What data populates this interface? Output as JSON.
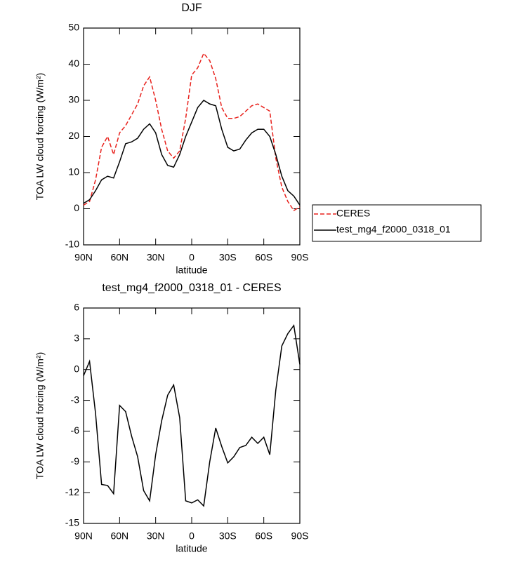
{
  "chart_data": [
    {
      "type": "line",
      "title": "DJF",
      "xlabel": "latitude",
      "ylabel": "TOA LW cloud forcing (W/m²)",
      "x": [
        90,
        85,
        80,
        75,
        70,
        65,
        60,
        55,
        50,
        45,
        40,
        35,
        30,
        25,
        20,
        15,
        10,
        5,
        0,
        -5,
        -10,
        -15,
        -20,
        -25,
        -30,
        -35,
        -40,
        -45,
        -50,
        -55,
        -60,
        -65,
        -70,
        -75,
        -80,
        -85,
        -90
      ],
      "series": [
        {
          "name": "CERES",
          "color": "#e8211c",
          "linestyle": "dashed",
          "values": [
            1,
            2,
            8,
            17,
            20,
            15,
            21,
            23,
            26,
            29,
            34,
            36.5,
            30,
            22,
            16,
            14,
            16,
            25,
            37,
            39,
            43,
            41,
            36,
            28,
            25,
            25,
            25.5,
            27,
            28.5,
            29,
            28,
            27,
            14,
            6,
            2,
            -0.5,
            0.5
          ]
        },
        {
          "name": "test_mg4_f2000_0318_01",
          "color": "#000000",
          "linestyle": "solid",
          "values": [
            1.5,
            2.5,
            5,
            8,
            9,
            8.5,
            13,
            18,
            18.5,
            19.5,
            22,
            23.5,
            21,
            15,
            12,
            11.5,
            15,
            20,
            24,
            28,
            30,
            29,
            28.5,
            22,
            17,
            16,
            16.5,
            19,
            21,
            22,
            22,
            20,
            15,
            9,
            5,
            3.5,
            1
          ]
        }
      ],
      "xlim": [
        90,
        -90
      ],
      "xticks": [
        {
          "value": 90,
          "label": "90N"
        },
        {
          "value": 60,
          "label": "60N"
        },
        {
          "value": 30,
          "label": "30N"
        },
        {
          "value": 0,
          "label": "0"
        },
        {
          "value": -30,
          "label": "30S"
        },
        {
          "value": -60,
          "label": "60S"
        },
        {
          "value": -90,
          "label": "90S"
        }
      ],
      "ylim": [
        -10,
        50
      ],
      "yticks": [
        -10,
        0,
        10,
        20,
        30,
        40,
        50
      ],
      "legend": "right"
    },
    {
      "type": "line",
      "title": "test_mg4_f2000_0318_01 - CERES",
      "xlabel": "latitude",
      "ylabel": "TOA LW cloud forcing (W/m²)",
      "x": [
        90,
        85,
        80,
        75,
        70,
        65,
        60,
        55,
        50,
        45,
        40,
        35,
        30,
        25,
        20,
        15,
        10,
        5,
        0,
        -5,
        -10,
        -15,
        -20,
        -25,
        -30,
        -35,
        -40,
        -45,
        -50,
        -55,
        -60,
        -65,
        -70,
        -75,
        -80,
        -85,
        -90
      ],
      "series": [
        {
          "name": null,
          "color": "#000000",
          "linestyle": "solid",
          "values": [
            -0.6,
            0.8,
            -4.3,
            -11.2,
            -11.3,
            -12.1,
            -3.5,
            -4.1,
            -6.5,
            -8.5,
            -11.8,
            -12.8,
            -8.3,
            -5,
            -2.5,
            -1.5,
            -4.7,
            -12.8,
            -13,
            -12.7,
            -13.3,
            -9,
            -5.7,
            -7.5,
            -9.1,
            -8.5,
            -7.6,
            -7.4,
            -6.6,
            -7.2,
            -6.6,
            -8.3,
            -2,
            2.3,
            3.5,
            4.3,
            0.5
          ]
        }
      ],
      "xlim": [
        90,
        -90
      ],
      "xticks": [
        {
          "value": 90,
          "label": "90N"
        },
        {
          "value": 60,
          "label": "60N"
        },
        {
          "value": 30,
          "label": "30N"
        },
        {
          "value": 0,
          "label": "0"
        },
        {
          "value": -30,
          "label": "30S"
        },
        {
          "value": -60,
          "label": "60S"
        },
        {
          "value": -90,
          "label": "90S"
        }
      ],
      "ylim": [
        -15,
        6
      ],
      "yticks": [
        -15,
        -12,
        -9,
        -6,
        -3,
        0,
        3,
        6
      ]
    }
  ]
}
